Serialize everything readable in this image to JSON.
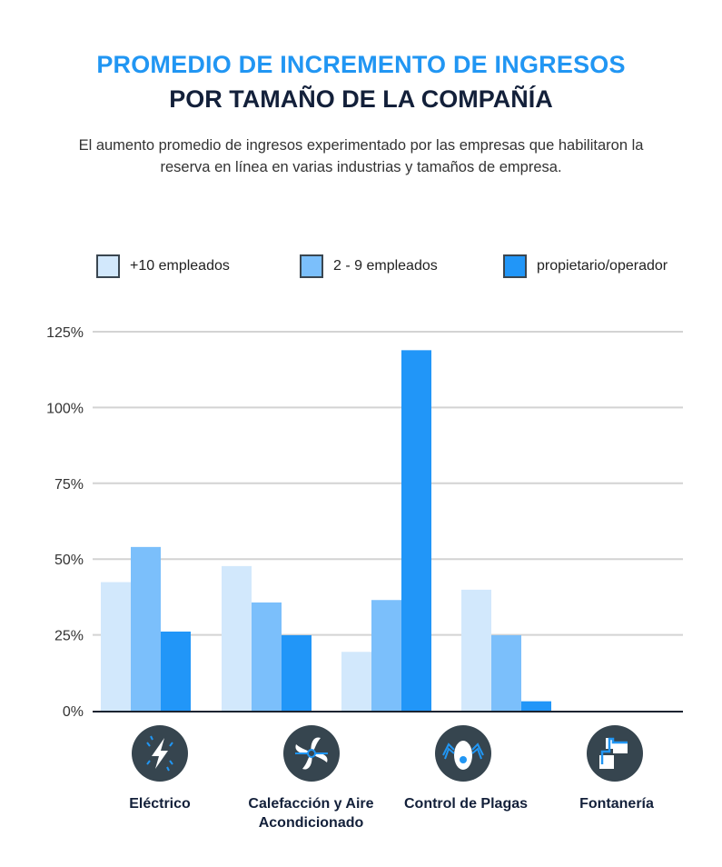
{
  "title_line1": "PROMEDIO DE INCREMENTO DE INGRESOS",
  "title_line2": "POR TAMAÑO DE LA COMPAÑÍA",
  "subtitle": "El aumento promedio de ingresos experimentado por las empresas que habilitaron la reserva en línea en varias industrias y tamaños de empresa.",
  "chart_data": {
    "type": "bar",
    "categories": [
      "Eléctrico",
      "Calefacción y Aire Acondicionado",
      "Control de Plagas",
      "Fontanería"
    ],
    "category_icons": [
      "lightning-icon",
      "fan-icon",
      "bug-icon",
      "pipe-icon"
    ],
    "series": [
      {
        "name": "+10 empleados",
        "color": "#d2e8fc",
        "values": [
          42.4,
          47.7,
          19.4,
          39.9
        ]
      },
      {
        "name": "2 - 9 empleados",
        "color": "#7bbffb",
        "values": [
          54,
          35.7,
          36.5,
          24.9
        ]
      },
      {
        "name": "propietario/operador",
        "color": "#2196f8",
        "values": [
          26.1,
          24.9,
          118.9,
          3.1
        ]
      }
    ],
    "ylim": [
      0,
      125
    ],
    "yticks": [
      "0%",
      "25%",
      "50%",
      "75%",
      "100%",
      "125%"
    ],
    "ytick_values": [
      0,
      25,
      50,
      75,
      100,
      125
    ],
    "grid": true,
    "legend_position": "top",
    "icon_bg_color": "#36454f"
  }
}
